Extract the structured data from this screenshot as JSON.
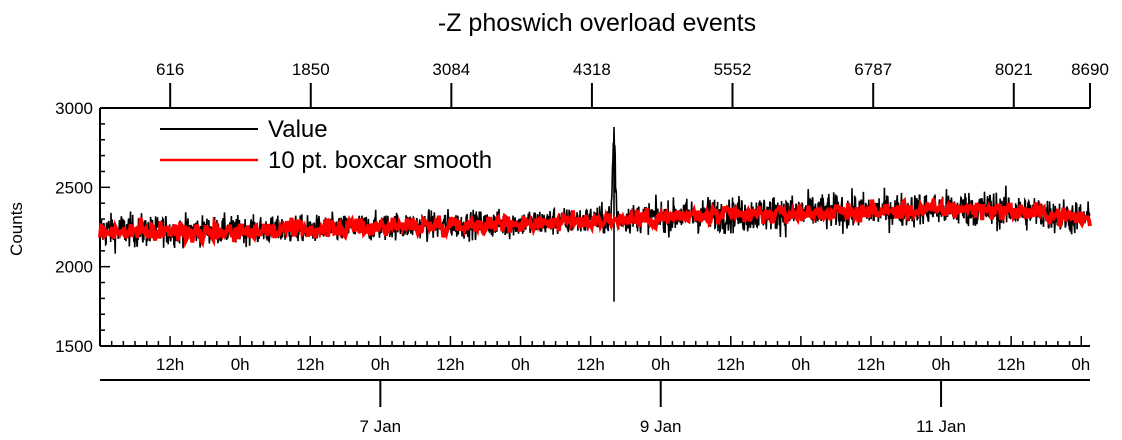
{
  "chart_data": {
    "type": "line",
    "title": "-Z phoswich overload events",
    "ylabel": "Counts",
    "xlabel": "",
    "ylim": [
      1500,
      3000
    ],
    "y_major_ticks": [
      1500,
      2000,
      2500,
      3000
    ],
    "x_index_range": [
      0,
      8690
    ],
    "top_axis_ticks": [
      "616",
      "1850",
      "3084",
      "4318",
      "5552",
      "6787",
      "8021",
      "8690"
    ],
    "top_axis_tick_values": [
      616,
      1850,
      3084,
      4318,
      5552,
      6787,
      8021,
      8690
    ],
    "time_axis_ticks": [
      "12h",
      "0h",
      "12h",
      "0h",
      "12h",
      "0h",
      "12h",
      "0h",
      "12h",
      "0h",
      "12h",
      "0h",
      "12h",
      "0h"
    ],
    "time_axis_tick_hours": [
      12,
      24,
      36,
      48,
      60,
      72,
      84,
      96,
      108,
      120,
      132,
      144,
      156,
      168
    ],
    "date_axis_ticks": [
      "7 Jan",
      "9 Jan",
      "11 Jan"
    ],
    "date_axis_tick_hours": [
      48,
      96,
      144
    ],
    "time_axis_range_hours": [
      0,
      169.5
    ],
    "grid": false,
    "legend_position": "top-left",
    "series": [
      {
        "name": "Value",
        "color": "#000000",
        "hours": [
          0,
          10,
          20,
          30,
          40,
          50,
          60,
          70,
          80,
          87.5,
          88,
          88.5,
          90,
          100,
          110,
          120,
          130,
          140,
          150,
          160,
          169.5
        ],
        "values": [
          2230,
          2225,
          2230,
          2230,
          2240,
          2255,
          2265,
          2270,
          2285,
          2300,
          2880,
          2300,
          2310,
          2320,
          2330,
          2340,
          2350,
          2360,
          2370,
          2340,
          2300
        ],
        "min_values": [
          2020,
          2050,
          2080,
          2100,
          2110,
          2120,
          2120,
          2110,
          2150,
          2160,
          1780,
          2160,
          2170,
          2150,
          2140,
          2160,
          2160,
          2180,
          2170,
          2130,
          2100
        ],
        "max_values": [
          2400,
          2380,
          2380,
          2390,
          2400,
          2410,
          2420,
          2420,
          2450,
          2470,
          2880,
          2470,
          2480,
          2500,
          2530,
          2560,
          2540,
          2530,
          2580,
          2500,
          2450
        ]
      },
      {
        "name": "10 pt. boxcar smooth",
        "color": "#ff0000",
        "hours": [
          0,
          10,
          20,
          30,
          40,
          50,
          60,
          70,
          80,
          90,
          100,
          110,
          120,
          130,
          140,
          150,
          160,
          169.5
        ],
        "values": [
          2220,
          2220,
          2225,
          2230,
          2240,
          2255,
          2265,
          2270,
          2285,
          2300,
          2315,
          2325,
          2335,
          2345,
          2355,
          2365,
          2340,
          2300
        ]
      }
    ]
  }
}
